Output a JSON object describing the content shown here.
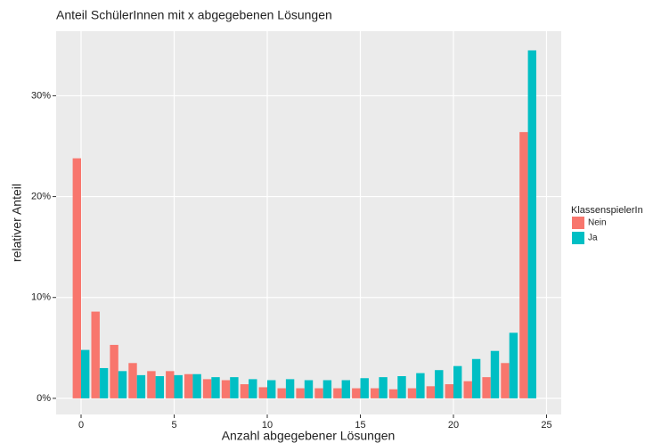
{
  "chart_data": {
    "type": "bar",
    "title": "Anteil SchülerInnen mit x abgegebenen Lösungen",
    "x_label": "Anzahl abgegebener Lösungen",
    "y_label": "relativer Anteil",
    "x": [
      0,
      1,
      2,
      3,
      4,
      5,
      6,
      7,
      8,
      9,
      10,
      11,
      12,
      13,
      14,
      15,
      16,
      17,
      18,
      19,
      20,
      21,
      22,
      23,
      24
    ],
    "series": [
      {
        "name": "Nein",
        "color": "#f8766d",
        "values": [
          23.8,
          8.6,
          5.3,
          3.5,
          2.7,
          2.7,
          2.4,
          1.9,
          1.8,
          1.4,
          1.1,
          1.0,
          1.0,
          1.0,
          1.0,
          1.0,
          1.0,
          0.9,
          1.0,
          1.2,
          1.4,
          1.7,
          2.1,
          3.5,
          26.4
        ]
      },
      {
        "name": "Ja",
        "color": "#00bfc4",
        "values": [
          4.8,
          3.0,
          2.7,
          2.3,
          2.2,
          2.3,
          2.4,
          2.1,
          2.1,
          1.9,
          1.8,
          1.9,
          1.8,
          1.8,
          1.8,
          2.0,
          2.1,
          2.2,
          2.5,
          2.8,
          3.2,
          3.9,
          4.7,
          6.5,
          34.5
        ]
      }
    ],
    "legend_title": "KlassenspielerIn",
    "legend": "right",
    "xlim": [
      -1.34,
      25.79
    ],
    "ylim": [
      -1.6,
      36.4
    ],
    "xticks": [
      0,
      5,
      10,
      15,
      20,
      25
    ],
    "yticks": [
      {
        "value": 0,
        "label": "0%"
      },
      {
        "value": 10,
        "label": "10%"
      },
      {
        "value": 20,
        "label": "20%"
      },
      {
        "value": 30,
        "label": "30%"
      }
    ],
    "grid": true
  }
}
